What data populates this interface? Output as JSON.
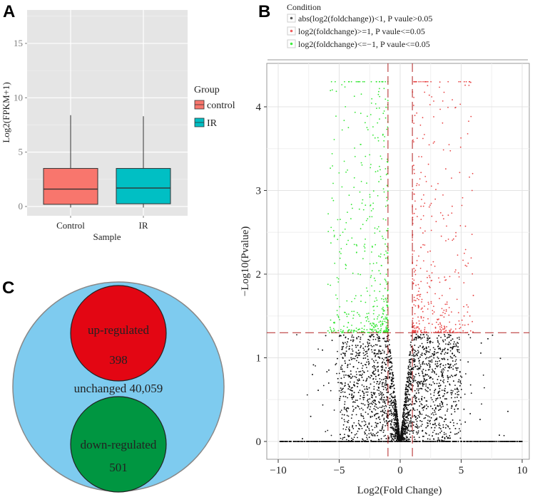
{
  "panels": {
    "a": "A",
    "b": "B",
    "c": "C"
  },
  "chart_data": [
    {
      "type": "box",
      "panel": "A",
      "xlabel": "Sample",
      "ylabel": "Log2(FPKM+1)",
      "categories": [
        "Control",
        "IR"
      ],
      "yticks": [
        "0",
        "5",
        "10",
        "15"
      ],
      "ylim": [
        -1.3,
        18.3
      ],
      "legend": {
        "title": "Group",
        "entries": [
          "control",
          "IR"
        ],
        "placement": "right"
      },
      "colors": [
        "#f8766d",
        "#00bfc4"
      ],
      "boxes": [
        {
          "name": "Control",
          "min": -0.1,
          "q1": 0.2,
          "median": 1.6,
          "q3": 3.5,
          "max": 8.4
        },
        {
          "name": "IR",
          "min": -0.1,
          "q1": 0.25,
          "median": 1.7,
          "q3": 3.5,
          "max": 8.3
        }
      ]
    },
    {
      "type": "scatter",
      "panel": "B",
      "xlabel": "Log2(Fold Change)",
      "ylabel": "−Log10(Pvalue)",
      "xticks": [
        "−10",
        "−5",
        "0",
        "5",
        "10"
      ],
      "xtick_values": [
        -10,
        -5,
        0,
        5,
        10
      ],
      "yticks": [
        "0",
        "1",
        "2",
        "3",
        "4"
      ],
      "xlim": [
        -10.9,
        11.1
      ],
      "ylim": [
        -0.22,
        4.5
      ],
      "thresholds": {
        "fold_change": [
          -1,
          1
        ],
        "pvalue_line": 1.3
      },
      "legend": {
        "title": "Condition",
        "placement": "top",
        "entries": [
          {
            "label": "abs(log2(foldchange))<1, P vaule>0.05",
            "color": "#555555"
          },
          {
            "label": "log2(foldchange)>=1, P vaule<=0.05",
            "color": "#f06060"
          },
          {
            "label": "log2(foldchange)<=−1, P vaule<=0.05",
            "color": "#40ee40"
          }
        ]
      },
      "series_counts": {
        "unchanged": 40059,
        "up": 398,
        "down": 501
      },
      "max_y_cap": 4.3
    },
    {
      "type": "venn",
      "panel": "C",
      "sets": [
        {
          "label": "unchanged 40,059",
          "value": 40059,
          "color": "#7ecbef"
        },
        {
          "label": "up-regulated",
          "count": "398",
          "value": 398,
          "color": "#e30613"
        },
        {
          "label": "down-regulated",
          "count": "501",
          "value": 501,
          "color": "#009641"
        }
      ]
    }
  ]
}
